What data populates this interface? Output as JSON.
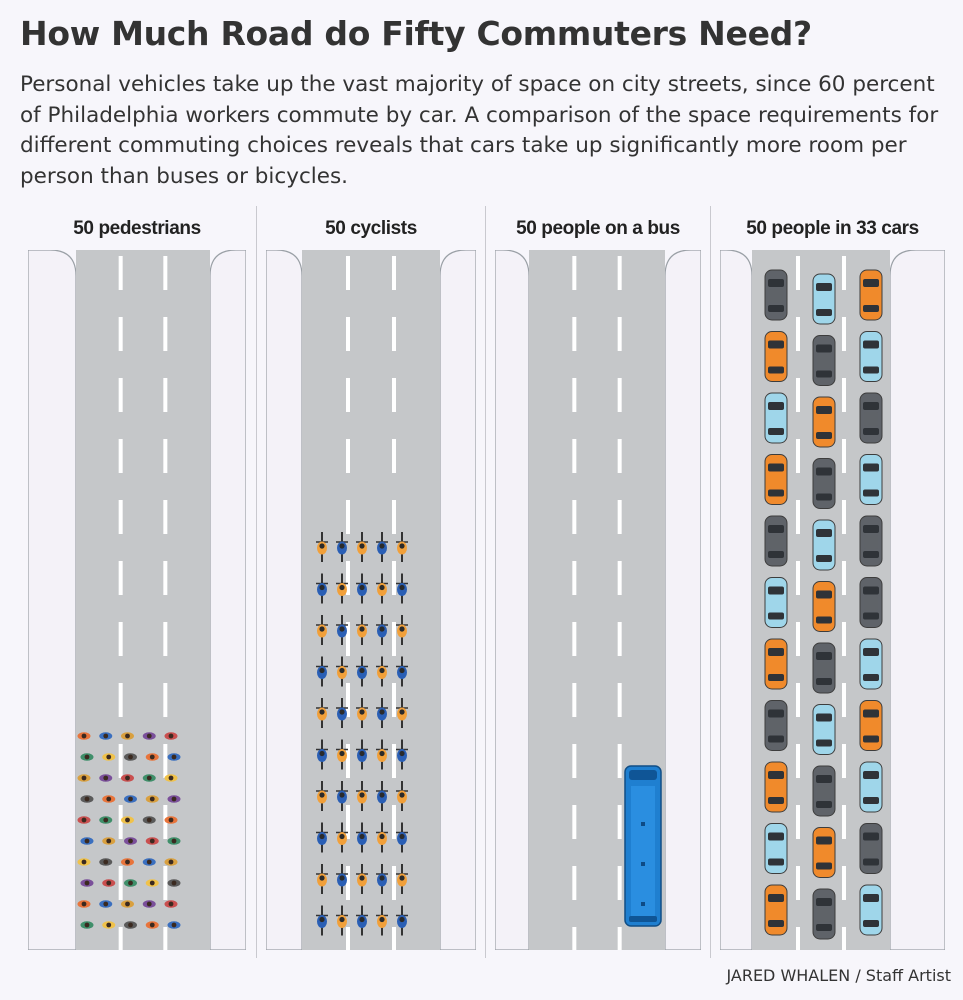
{
  "header": {
    "title": "How Much Road do Fifty Commuters Need?",
    "subtitle": "Personal vehicles take up the vast majority of space on city streets, since 60 percent of Philadelphia workers commute by car. A comparison of the space requirements for different commuting choices reveals that cars take up significantly more room per person than buses or bicycles."
  },
  "panels": [
    {
      "label": "50 pedestrians"
    },
    {
      "label": "50 cyclists"
    },
    {
      "label": "50 people on a bus"
    },
    {
      "label": "50 people in 33 cars"
    }
  ],
  "credit": "JARED WHALEN / Staff Artist",
  "colors": {
    "road": "#c5c7c9",
    "sidewalk": "#f4f2f8",
    "lane_marking": "#ffffff",
    "bus": "#1f7fd0",
    "car_orange": "#f08a2c",
    "car_gray": "#5f6369",
    "car_lightblue": "#9fd6ea",
    "cyclist_orange": "#f1a03a",
    "cyclist_blue": "#2a5fb5"
  },
  "counts": {
    "pedestrians": 50,
    "cyclists": 50,
    "bus_riders": 50,
    "cars": 33
  }
}
